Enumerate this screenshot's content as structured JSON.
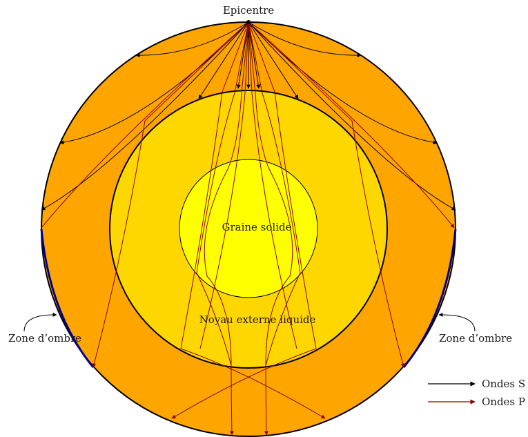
{
  "labels": {
    "epicentre": "Epicentre",
    "inner_core": "Graine solide",
    "outer_core": "Noyau externe liquide",
    "shadow_left": "Zone d’ombre",
    "shadow_right": "Zone d’ombre"
  },
  "legend": {
    "s_waves": "Ondes S",
    "p_waves": "Ondes P"
  },
  "colors": {
    "mantle": "#ffa500",
    "outer_core": "#ffd700",
    "inner_core": "#ffff00",
    "s_waves": "#000000",
    "p_waves": "#8b0000",
    "shadow_zone": "#00008b"
  }
}
